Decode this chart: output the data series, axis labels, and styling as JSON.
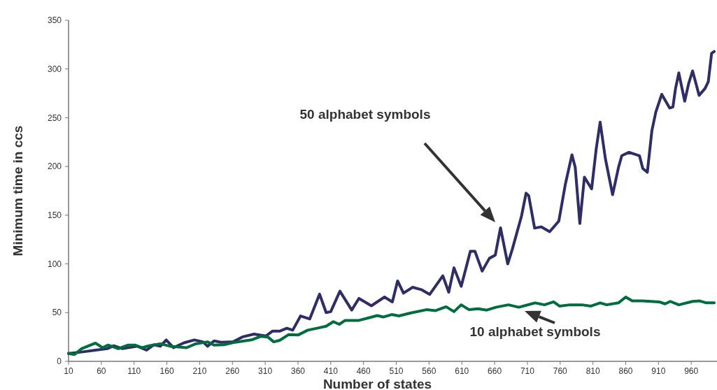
{
  "chart_data": {
    "type": "line",
    "xlabel": "Number of states",
    "ylabel": "Minimum time in ccs",
    "xlim": [
      10,
      995
    ],
    "xticks": [
      10,
      60,
      110,
      160,
      210,
      260,
      310,
      360,
      410,
      460,
      510,
      560,
      610,
      660,
      710,
      760,
      810,
      860,
      910,
      960
    ],
    "ylim": [
      0,
      350
    ],
    "yticks": [
      0,
      50,
      100,
      150,
      200,
      250,
      300,
      350
    ],
    "grid": false,
    "marker": "none",
    "line_style": "solid",
    "series": [
      {
        "color": "#2e2d66",
        "x": [
          10,
          30,
          51,
          69,
          79,
          92,
          115,
          129,
          140,
          150,
          159,
          170,
          186,
          202,
          215,
          222,
          232,
          243,
          261,
          275,
          293,
          311,
          321,
          332,
          343,
          352,
          364,
          378,
          393,
          403,
          410,
          424,
          442,
          453,
          472,
          492,
          504,
          512,
          521,
          535,
          549,
          561,
          581,
          590,
          598,
          609,
          623,
          630,
          641,
          652,
          661,
          669,
          680,
          687,
          701,
          708,
          712,
          721,
          731,
          744,
          758,
          768,
          778,
          783,
          790,
          797,
          808,
          815,
          821,
          829,
          840,
          849,
          854,
          865,
          881,
          886,
          893,
          900,
          906,
          915,
          927,
          932,
          936,
          941,
          950,
          956,
          962,
          972,
          981,
          986,
          991,
          995
        ],
        "values": [
          8,
          9.6,
          11.5,
          13,
          16,
          13,
          15.5,
          11.5,
          17,
          15.5,
          22,
          14,
          19,
          22,
          20,
          15.5,
          21,
          19.6,
          20,
          25,
          28,
          26,
          31,
          31,
          34,
          32,
          46.6,
          43.5,
          69,
          50,
          51,
          72,
          52.6,
          64.6,
          57,
          66,
          61,
          82.5,
          70,
          76,
          73.4,
          68.7,
          87.8,
          71,
          96,
          77,
          113,
          113,
          92.6,
          105.7,
          109,
          137,
          100,
          115,
          149,
          172.6,
          170,
          136.7,
          138,
          133,
          144,
          182,
          212,
          199,
          141.5,
          189,
          177,
          218,
          245.5,
          208,
          171,
          199,
          211,
          214.5,
          211,
          198,
          194,
          237,
          256,
          274,
          260,
          261,
          280,
          296,
          267,
          285,
          298,
          273,
          280,
          287,
          316,
          318
        ]
      },
      {
        "color": "#006d3f",
        "x": [
          10,
          19,
          30,
          51,
          62,
          70,
          86,
          101,
          111,
          122,
          133,
          150,
          165,
          190,
          204,
          222,
          232,
          247,
          264,
          289,
          303,
          314,
          323,
          332,
          346,
          360,
          375,
          389,
          403,
          414,
          423,
          432,
          453,
          470,
          481,
          490,
          503,
          514,
          531,
          556,
          570,
          586,
          598,
          609,
          621,
          635,
          648,
          662,
          681,
          697,
          722,
          736,
          750,
          759,
          775,
          793,
          807,
          821,
          831,
          849,
          860,
          870,
          885,
          911,
          920,
          928,
          941,
          962,
          973,
          983,
          995
        ],
        "values": [
          8,
          7,
          13,
          18.7,
          14,
          16.7,
          13,
          16.7,
          16.7,
          14,
          16,
          18,
          15.5,
          14,
          18,
          20,
          16.7,
          17,
          19.6,
          22,
          25.6,
          25,
          20,
          21.5,
          27.5,
          27,
          32,
          34,
          36,
          40.7,
          38,
          42,
          42,
          45,
          47,
          45.5,
          48,
          46.6,
          49.5,
          53,
          52,
          56,
          51,
          58,
          53,
          54,
          52.6,
          55.5,
          58,
          55.5,
          60,
          58,
          61,
          56.7,
          58,
          58,
          56.7,
          60,
          58,
          60,
          66,
          62,
          62,
          61,
          59,
          61.5,
          58,
          61.5,
          62,
          60,
          60
        ]
      }
    ],
    "annotations": [
      "50 alphabet symbols",
      "10 alphabet symbols"
    ]
  }
}
